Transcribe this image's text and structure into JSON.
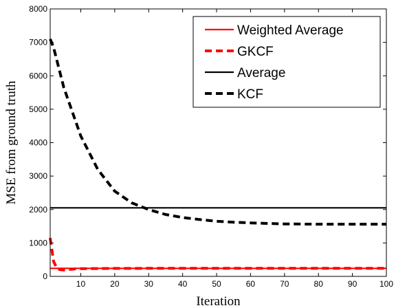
{
  "chart_data": {
    "type": "line",
    "xlabel": "Iteration",
    "ylabel": "MSE from ground truth",
    "xlim": [
      1,
      100
    ],
    "ylim": [
      0,
      8000
    ],
    "xticks": [
      10,
      20,
      30,
      40,
      50,
      60,
      70,
      80,
      90,
      100
    ],
    "yticks": [
      0,
      1000,
      2000,
      3000,
      4000,
      5000,
      6000,
      7000,
      8000
    ],
    "grid": false,
    "legend_position": "top-right",
    "series": [
      {
        "name": "Weighted Average",
        "color": "#ff0000",
        "style": "solid",
        "x": [
          1,
          100
        ],
        "y": [
          240,
          240
        ]
      },
      {
        "name": "GKCF",
        "color": "#ff0000",
        "style": "dashed",
        "x": [
          1,
          2,
          3,
          4,
          5,
          6,
          8,
          10,
          15,
          20,
          30,
          40,
          50,
          60,
          70,
          80,
          90,
          100
        ],
        "y": [
          1150,
          450,
          230,
          200,
          190,
          200,
          220,
          230,
          235,
          238,
          240,
          240,
          240,
          240,
          240,
          240,
          240,
          240
        ]
      },
      {
        "name": "Average",
        "color": "#000000",
        "style": "solid",
        "x": [
          1,
          100
        ],
        "y": [
          2050,
          2050
        ]
      },
      {
        "name": "KCF",
        "color": "#000000",
        "style": "dashed",
        "x": [
          1,
          2,
          5,
          10,
          15,
          20,
          25,
          30,
          35,
          40,
          45,
          50,
          55,
          60,
          70,
          80,
          90,
          100
        ],
        "y": [
          7100,
          6850,
          5650,
          4200,
          3200,
          2550,
          2200,
          2000,
          1850,
          1760,
          1700,
          1650,
          1620,
          1600,
          1570,
          1560,
          1560,
          1560
        ]
      }
    ]
  }
}
